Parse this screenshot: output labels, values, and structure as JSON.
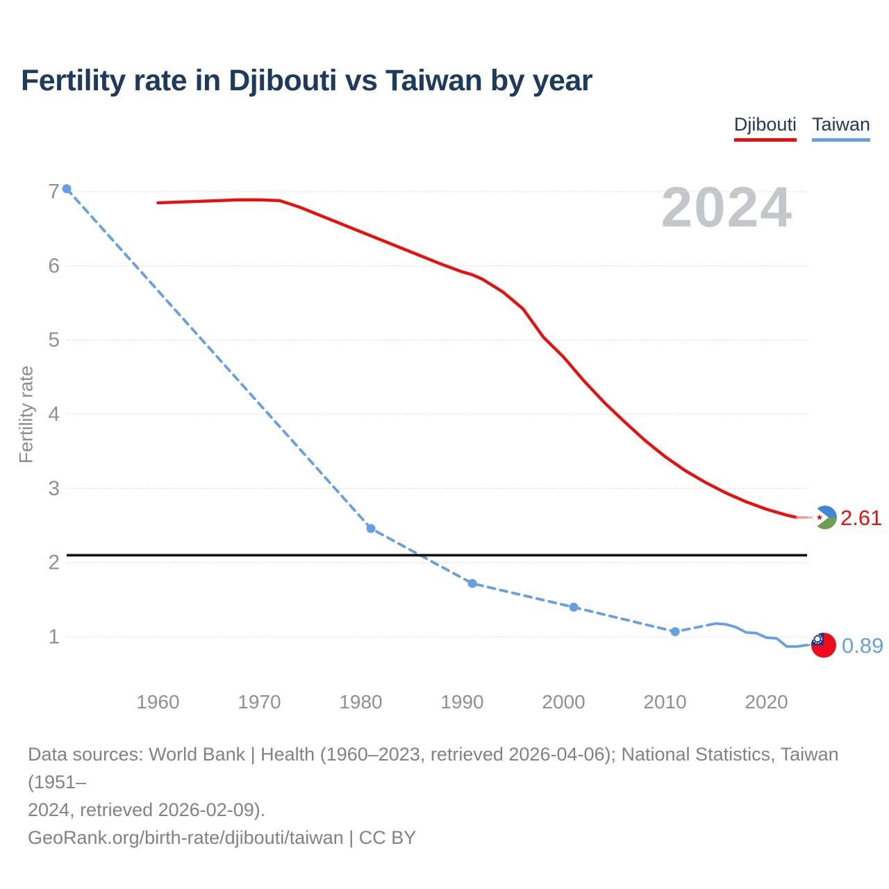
{
  "chart_data": {
    "type": "line",
    "title": "Fertility rate in Djibouti vs Taiwan by year",
    "ylabel": "Fertility rate",
    "watermark": "2024",
    "grid": true,
    "legend_position": "top-right",
    "xlim": [
      1951,
      2024
    ],
    "ylim": [
      1,
      7
    ],
    "xticks": [
      "1960",
      "1970",
      "1980",
      "1990",
      "2000",
      "2010",
      "2020"
    ],
    "yticks": [
      "1",
      "2",
      "3",
      "4",
      "5",
      "6",
      "7"
    ],
    "replacement_line_value": 2.1,
    "series": [
      {
        "name": "Djibouti",
        "color": "#e90f0f",
        "style": "solid",
        "end_label": "2.61",
        "end_value": 2.61,
        "points": [
          [
            1960,
            6.85
          ],
          [
            1962,
            6.86
          ],
          [
            1964,
            6.87
          ],
          [
            1966,
            6.88
          ],
          [
            1968,
            6.89
          ],
          [
            1970,
            6.89
          ],
          [
            1972,
            6.88
          ],
          [
            1974,
            6.79
          ],
          [
            1976,
            6.68
          ],
          [
            1978,
            6.57
          ],
          [
            1980,
            6.46
          ],
          [
            1982,
            6.35
          ],
          [
            1984,
            6.24
          ],
          [
            1986,
            6.13
          ],
          [
            1988,
            6.02
          ],
          [
            1990,
            5.92
          ],
          [
            1991,
            5.88
          ],
          [
            1992,
            5.82
          ],
          [
            1994,
            5.65
          ],
          [
            1996,
            5.42
          ],
          [
            1998,
            5.04
          ],
          [
            2000,
            4.77
          ],
          [
            2002,
            4.45
          ],
          [
            2004,
            4.16
          ],
          [
            2006,
            3.9
          ],
          [
            2008,
            3.65
          ],
          [
            2010,
            3.43
          ],
          [
            2012,
            3.24
          ],
          [
            2014,
            3.08
          ],
          [
            2016,
            2.94
          ],
          [
            2018,
            2.82
          ],
          [
            2020,
            2.72
          ],
          [
            2022,
            2.64
          ],
          [
            2023,
            2.61
          ]
        ],
        "projected_points": [
          [
            2023,
            2.61
          ],
          [
            2024,
            2.61
          ]
        ]
      },
      {
        "name": "Taiwan",
        "color": "#66a0e2",
        "style": "dashed-then-solid",
        "end_label": "0.89",
        "end_value": 0.89,
        "dashed_points": [
          [
            1951,
            7.04
          ],
          [
            1981,
            2.46
          ],
          [
            1991,
            1.72
          ],
          [
            2001,
            1.4
          ],
          [
            2011,
            1.07
          ],
          [
            2015,
            1.18
          ]
        ],
        "solid_points": [
          [
            2015,
            1.18
          ],
          [
            2016,
            1.17
          ],
          [
            2017,
            1.13
          ],
          [
            2018,
            1.06
          ],
          [
            2019,
            1.05
          ],
          [
            2020,
            0.99
          ],
          [
            2021,
            0.98
          ],
          [
            2022,
            0.87
          ],
          [
            2023,
            0.87
          ],
          [
            2024,
            0.89
          ]
        ],
        "marker_points": [
          [
            1951,
            7.04
          ],
          [
            1981,
            2.46
          ],
          [
            1991,
            1.72
          ],
          [
            2001,
            1.4
          ],
          [
            2011,
            1.07
          ]
        ]
      }
    ]
  },
  "footer": {
    "line1": "Data sources: World Bank | Health (1960–2023, retrieved 2026-04-06); National Statistics, Taiwan (1951–",
    "line2": "2024, retrieved 2026-02-09).",
    "line3": "GeoRank.org/birth-rate/djibouti/taiwan | CC BY"
  }
}
